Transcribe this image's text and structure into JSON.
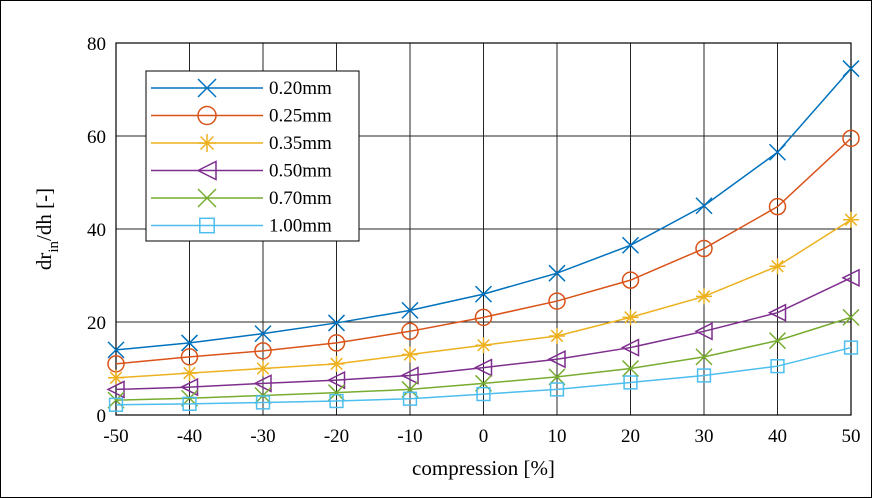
{
  "chart_data": {
    "type": "line",
    "xlabel": "compression [%]",
    "ylabel_main": "dr",
    "ylabel_sub": "in",
    "ylabel_rest": "/dh [-]",
    "x": [
      -50,
      -40,
      -30,
      -20,
      -10,
      0,
      10,
      20,
      30,
      40,
      50
    ],
    "xlim": [
      -50,
      50
    ],
    "ylim": [
      0,
      80
    ],
    "xticks": [
      "-50",
      "-40",
      "-30",
      "-20",
      "-10",
      "0",
      "10",
      "20",
      "30",
      "40",
      "50"
    ],
    "yticks": [
      "0",
      "20",
      "40",
      "60",
      "80"
    ],
    "grid": true,
    "legend_position": "top-left",
    "series": [
      {
        "name": "0.20mm",
        "color": "#0072BD",
        "marker": "x",
        "values": [
          14,
          15.5,
          17.5,
          19.8,
          22.5,
          26,
          30.5,
          36.5,
          45,
          56.5,
          74.5
        ]
      },
      {
        "name": "0.25mm",
        "color": "#D95319",
        "marker": "circle",
        "values": [
          11,
          12.5,
          13.8,
          15.5,
          18,
          21,
          24.5,
          29,
          35.8,
          44.8,
          59.5
        ]
      },
      {
        "name": "0.35mm",
        "color": "#EDB120",
        "marker": "star",
        "values": [
          8,
          9,
          10,
          11,
          13,
          15,
          17,
          21,
          25.5,
          32,
          42
        ]
      },
      {
        "name": "0.50mm",
        "color": "#7E2F8E",
        "marker": "triangle-left",
        "values": [
          5.5,
          6,
          6.8,
          7.5,
          8.5,
          10.2,
          12,
          14.5,
          18,
          22,
          29.5
        ]
      },
      {
        "name": "0.70mm",
        "color": "#77AC30",
        "marker": "x",
        "values": [
          3.2,
          3.6,
          4.2,
          4.8,
          5.5,
          6.8,
          8.2,
          10,
          12.5,
          16,
          21
        ]
      },
      {
        "name": "1.00mm",
        "color": "#4DBEEE",
        "marker": "square",
        "values": [
          2.2,
          2.4,
          2.7,
          3,
          3.5,
          4.5,
          5.5,
          7,
          8.5,
          10.5,
          14.5
        ]
      }
    ]
  }
}
